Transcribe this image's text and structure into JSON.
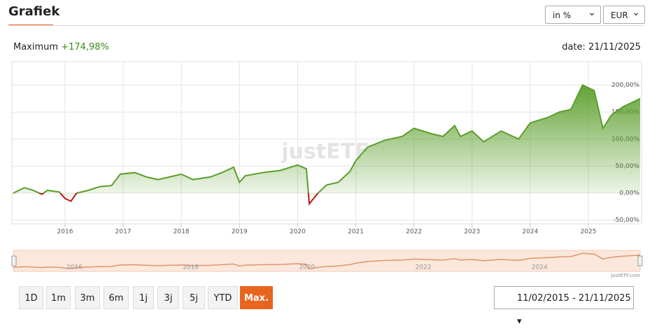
{
  "header": {
    "title": "Grafiek",
    "selects": [
      "in %",
      "EUR"
    ]
  },
  "summary": {
    "label": "Maximum",
    "value": "+174,98%",
    "date": "date: 21/11/2025"
  },
  "chart_data": {
    "type": "line",
    "watermark": "justETF",
    "credit": "justETF.com",
    "x": [
      2015.11,
      2015.3,
      2015.45,
      2015.6,
      2015.7,
      2015.9,
      2016.0,
      2016.1,
      2016.2,
      2016.4,
      2016.6,
      2016.8,
      2016.95,
      2017.2,
      2017.4,
      2017.6,
      2017.8,
      2018.0,
      2018.2,
      2018.5,
      2018.7,
      2018.9,
      2019.0,
      2019.1,
      2019.4,
      2019.7,
      2020.0,
      2020.15,
      2020.2,
      2020.35,
      2020.5,
      2020.7,
      2020.9,
      2021.0,
      2021.2,
      2021.5,
      2021.8,
      2022.0,
      2022.3,
      2022.5,
      2022.7,
      2022.8,
      2023.0,
      2023.2,
      2023.5,
      2023.8,
      2024.0,
      2024.3,
      2024.5,
      2024.7,
      2024.9,
      2025.1,
      2025.25,
      2025.4,
      2025.6,
      2025.89
    ],
    "series": [
      {
        "name": "Maximum",
        "color": "#5a9e2a",
        "negative_color": "#c0161c",
        "values": [
          0,
          10,
          5,
          -2,
          5,
          2,
          -10,
          -15,
          0,
          5,
          12,
          14,
          35,
          38,
          30,
          25,
          30,
          35,
          25,
          30,
          38,
          48,
          20,
          32,
          38,
          42,
          52,
          45,
          -20,
          0,
          15,
          20,
          40,
          60,
          85,
          98,
          105,
          120,
          110,
          105,
          125,
          105,
          115,
          95,
          115,
          100,
          130,
          140,
          150,
          155,
          200,
          190,
          120,
          145,
          160,
          174.98
        ]
      }
    ],
    "xlim": [
      2015.11,
      2025.89
    ],
    "xticks": [
      2016,
      2017,
      2018,
      2019,
      2020,
      2021,
      2022,
      2023,
      2024,
      2025
    ],
    "ylim": [
      -57,
      241
    ],
    "yticks": [
      {
        "value": -50,
        "label": "-50,00%"
      },
      {
        "value": 0,
        "label": "0,00%"
      },
      {
        "value": 50,
        "label": "50,00%"
      },
      {
        "value": 100,
        "label": "100,00%"
      },
      {
        "value": 150,
        "label": "150,00%"
      },
      {
        "value": 200,
        "label": "200,00%"
      }
    ],
    "grid": true,
    "navigator": {
      "xticks": [
        2016,
        2018,
        2020,
        2022,
        2024
      ],
      "color": "#e0956a",
      "background": "#fbe7dc"
    }
  },
  "controls": {
    "ranges": [
      "1D",
      "1m",
      "3m",
      "6m",
      "1j",
      "3j",
      "5j",
      "YTD",
      "Max."
    ],
    "active": 8,
    "date_range": "11/02/2015 - 21/11/2025"
  }
}
